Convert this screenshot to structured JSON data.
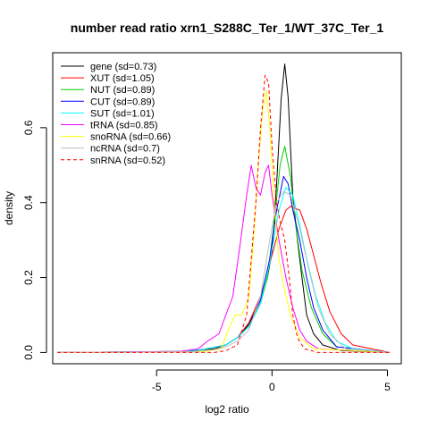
{
  "chart_data": {
    "type": "line",
    "title": "number read ratio xrn1_S288C_Ter_1/WT_37C_Ter_1",
    "xlabel": "log2 ratio",
    "ylabel": "density",
    "xlim": [
      -9.5,
      5.6
    ],
    "ylim": [
      -0.03,
      0.8
    ],
    "xticks": [
      -5,
      0,
      5
    ],
    "xtick_labels": [
      "-5",
      "0",
      "5"
    ],
    "yticks": [
      0.0,
      0.2,
      0.4,
      0.6
    ],
    "ytick_labels": [
      "0.0",
      "0.2",
      "0.4",
      "0.6"
    ],
    "grid": false,
    "legend_position": "top-left",
    "series": [
      {
        "name": "gene (sd=0.73)",
        "color": "#000000",
        "dash": "solid",
        "points": [
          [
            -9.3,
            0
          ],
          [
            -5,
            0.001
          ],
          [
            -3.5,
            0.004
          ],
          [
            -2.5,
            0.01
          ],
          [
            -2,
            0.02
          ],
          [
            -1.5,
            0.04
          ],
          [
            -1,
            0.075
          ],
          [
            -0.5,
            0.14
          ],
          [
            -0.2,
            0.2
          ],
          [
            0,
            0.27
          ],
          [
            0.2,
            0.45
          ],
          [
            0.4,
            0.68
          ],
          [
            0.55,
            0.77
          ],
          [
            0.7,
            0.68
          ],
          [
            0.9,
            0.42
          ],
          [
            1.1,
            0.3
          ],
          [
            1.3,
            0.2
          ],
          [
            1.5,
            0.1
          ],
          [
            1.8,
            0.05
          ],
          [
            2.2,
            0.02
          ],
          [
            3,
            0.005
          ],
          [
            5.1,
            0
          ]
        ]
      },
      {
        "name": "XUT (sd=1.05)",
        "color": "#ff0000",
        "dash": "solid",
        "points": [
          [
            -9.3,
            0
          ],
          [
            -4,
            0.003
          ],
          [
            -3,
            0.008
          ],
          [
            -2,
            0.02
          ],
          [
            -1.5,
            0.04
          ],
          [
            -1,
            0.08
          ],
          [
            -0.5,
            0.15
          ],
          [
            0,
            0.26
          ],
          [
            0.3,
            0.33
          ],
          [
            0.6,
            0.38
          ],
          [
            0.8,
            0.39
          ],
          [
            1.2,
            0.38
          ],
          [
            1.5,
            0.33
          ],
          [
            1.8,
            0.26
          ],
          [
            2.1,
            0.19
          ],
          [
            2.5,
            0.11
          ],
          [
            3,
            0.05
          ],
          [
            3.5,
            0.02
          ],
          [
            5.1,
            0
          ]
        ]
      },
      {
        "name": "NUT (sd=0.89)",
        "color": "#00cd00",
        "dash": "solid",
        "points": [
          [
            -9.3,
            0
          ],
          [
            -4,
            0.003
          ],
          [
            -3,
            0.008
          ],
          [
            -2,
            0.02
          ],
          [
            -1.5,
            0.04
          ],
          [
            -1,
            0.07
          ],
          [
            -0.5,
            0.13
          ],
          [
            -0.2,
            0.2
          ],
          [
            0.1,
            0.35
          ],
          [
            0.35,
            0.5
          ],
          [
            0.55,
            0.55
          ],
          [
            0.8,
            0.47
          ],
          [
            1,
            0.35
          ],
          [
            1.3,
            0.22
          ],
          [
            1.7,
            0.12
          ],
          [
            2.2,
            0.05
          ],
          [
            2.8,
            0.015
          ],
          [
            5.1,
            0
          ]
        ]
      },
      {
        "name": "CUT (sd=0.89)",
        "color": "#0000ff",
        "dash": "solid",
        "points": [
          [
            -9.3,
            0
          ],
          [
            -4,
            0.003
          ],
          [
            -3,
            0.008
          ],
          [
            -2,
            0.02
          ],
          [
            -1.5,
            0.04
          ],
          [
            -1,
            0.07
          ],
          [
            -0.5,
            0.14
          ],
          [
            -0.1,
            0.25
          ],
          [
            0.2,
            0.38
          ],
          [
            0.5,
            0.47
          ],
          [
            0.7,
            0.45
          ],
          [
            0.9,
            0.38
          ],
          [
            1.2,
            0.3
          ],
          [
            1.5,
            0.2
          ],
          [
            1.8,
            0.12
          ],
          [
            2.2,
            0.06
          ],
          [
            2.8,
            0.015
          ],
          [
            5.1,
            0
          ]
        ]
      },
      {
        "name": "SUT (sd=1.01)",
        "color": "#00ffff",
        "dash": "solid",
        "points": [
          [
            -9.3,
            0
          ],
          [
            -4,
            0.003
          ],
          [
            -3,
            0.008
          ],
          [
            -2,
            0.02
          ],
          [
            -1.5,
            0.04
          ],
          [
            -1,
            0.07
          ],
          [
            -0.5,
            0.13
          ],
          [
            -0.1,
            0.24
          ],
          [
            0.3,
            0.38
          ],
          [
            0.6,
            0.44
          ],
          [
            0.9,
            0.42
          ],
          [
            1.2,
            0.34
          ],
          [
            1.5,
            0.25
          ],
          [
            1.9,
            0.15
          ],
          [
            2.3,
            0.08
          ],
          [
            2.8,
            0.03
          ],
          [
            3.5,
            0.01
          ],
          [
            5.1,
            0
          ]
        ]
      },
      {
        "name": "tRNA (sd=0.85)",
        "color": "#ff00ff",
        "dash": "solid",
        "points": [
          [
            -9.3,
            0
          ],
          [
            -4,
            0.003
          ],
          [
            -3.2,
            0.01
          ],
          [
            -2.8,
            0.03
          ],
          [
            -2.3,
            0.05
          ],
          [
            -2,
            0.1
          ],
          [
            -1.7,
            0.15
          ],
          [
            -1.4,
            0.28
          ],
          [
            -1.1,
            0.42
          ],
          [
            -0.9,
            0.5
          ],
          [
            -0.7,
            0.44
          ],
          [
            -0.5,
            0.42
          ],
          [
            -0.3,
            0.48
          ],
          [
            -0.15,
            0.5
          ],
          [
            0,
            0.42
          ],
          [
            0.3,
            0.3
          ],
          [
            0.6,
            0.2
          ],
          [
            0.9,
            0.12
          ],
          [
            1.2,
            0.06
          ],
          [
            1.5,
            0.03
          ],
          [
            2,
            0.01
          ],
          [
            5.1,
            0
          ]
        ]
      },
      {
        "name": "snoRNA (sd=0.66)",
        "color": "#ffff00",
        "dash": "solid",
        "points": [
          [
            -9.3,
            0
          ],
          [
            -3,
            0.002
          ],
          [
            -2.2,
            0.01
          ],
          [
            -1.9,
            0.06
          ],
          [
            -1.6,
            0.1
          ],
          [
            -1.3,
            0.1
          ],
          [
            -1,
            0.15
          ],
          [
            -0.8,
            0.3
          ],
          [
            -0.6,
            0.5
          ],
          [
            -0.4,
            0.65
          ],
          [
            -0.25,
            0.7
          ],
          [
            -0.1,
            0.6
          ],
          [
            0.1,
            0.4
          ],
          [
            0.3,
            0.25
          ],
          [
            0.5,
            0.18
          ],
          [
            0.8,
            0.1
          ],
          [
            1.2,
            0.04
          ],
          [
            1.8,
            0.01
          ],
          [
            5.1,
            0
          ]
        ]
      },
      {
        "name": "ncRNA (sd=0.7)",
        "color": "#bebebe",
        "dash": "solid",
        "points": [
          [
            -9.3,
            0
          ],
          [
            -3.5,
            0.002
          ],
          [
            -2.5,
            0.008
          ],
          [
            -2,
            0.015
          ],
          [
            -1.5,
            0.03
          ],
          [
            -1,
            0.06
          ],
          [
            -0.5,
            0.15
          ],
          [
            -0.1,
            0.3
          ],
          [
            0.2,
            0.4
          ],
          [
            0.5,
            0.43
          ],
          [
            0.8,
            0.42
          ],
          [
            1.2,
            0.33
          ],
          [
            1.6,
            0.22
          ],
          [
            2,
            0.12
          ],
          [
            2.5,
            0.05
          ],
          [
            3.2,
            0.01
          ],
          [
            5.1,
            0
          ]
        ]
      },
      {
        "name": "snRNA (sd=0.52)",
        "color": "#ff0000",
        "dash": "dashed",
        "points": [
          [
            -9.3,
            0
          ],
          [
            -2.5,
            0
          ],
          [
            -2,
            0.005
          ],
          [
            -1.5,
            0.02
          ],
          [
            -1.1,
            0.1
          ],
          [
            -0.9,
            0.25
          ],
          [
            -0.7,
            0.4
          ],
          [
            -0.5,
            0.6
          ],
          [
            -0.3,
            0.74
          ],
          [
            -0.15,
            0.72
          ],
          [
            0,
            0.55
          ],
          [
            0.2,
            0.4
          ],
          [
            0.35,
            0.35
          ],
          [
            0.55,
            0.3
          ],
          [
            0.75,
            0.2
          ],
          [
            0.9,
            0.1
          ],
          [
            1.1,
            0.04
          ],
          [
            1.4,
            0.01
          ],
          [
            2,
            0
          ],
          [
            5.1,
            0
          ]
        ]
      }
    ]
  }
}
